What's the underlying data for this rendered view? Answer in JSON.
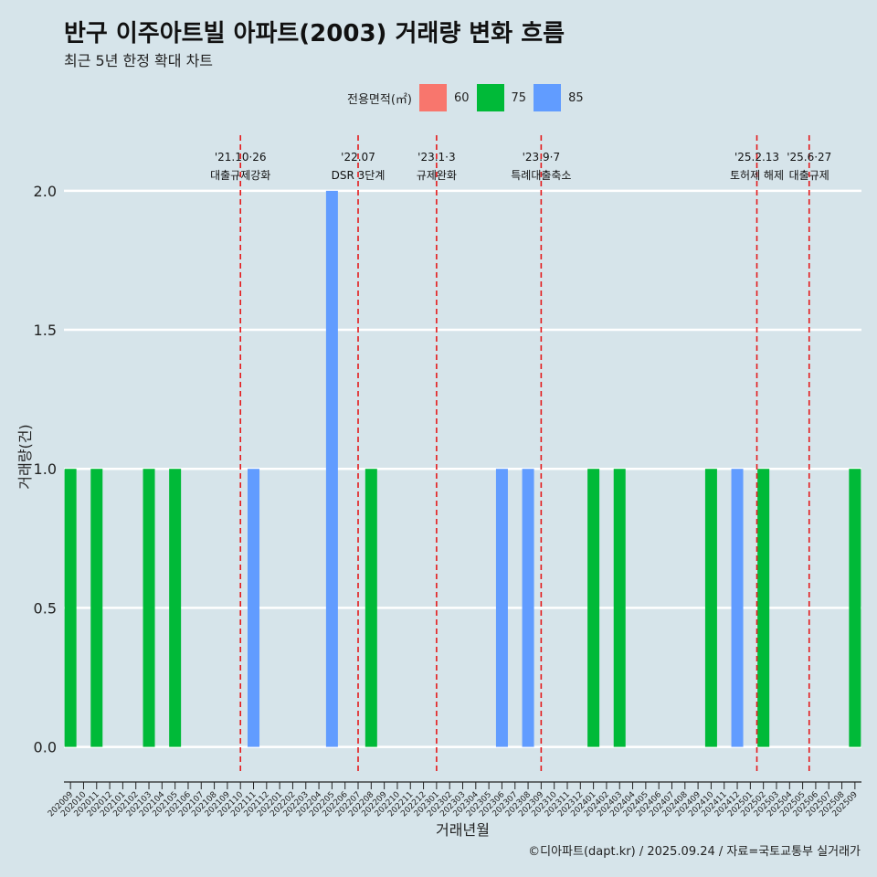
{
  "chart_data": {
    "type": "bar",
    "title": "반구 이주아트빌 아파트(2003) 거래량 변화 흐름",
    "subtitle": "최근 5년 한정 확대 차트",
    "xlabel": "거래년월",
    "ylabel": "거래량(건)",
    "ylim": [
      -0.1,
      2.2
    ],
    "yticks": [
      "0.0",
      "0.5",
      "1.0",
      "1.5",
      "2.0"
    ],
    "ytick_values": [
      0,
      0.5,
      1.0,
      1.5,
      2.0
    ],
    "grid": "horizontal",
    "legend_position": "top",
    "legend_title": "전용면적(㎡)",
    "legend": [
      {
        "name": "60",
        "color": "#f8766d"
      },
      {
        "name": "75",
        "color": "#00ba38"
      },
      {
        "name": "85",
        "color": "#619cff"
      }
    ],
    "categories": [
      "202009",
      "202010",
      "202011",
      "202012",
      "202101",
      "202102",
      "202103",
      "202104",
      "202105",
      "202106",
      "202107",
      "202108",
      "202109",
      "202110",
      "202111",
      "202112",
      "202201",
      "202202",
      "202203",
      "202204",
      "202205",
      "202206",
      "202207",
      "202208",
      "202209",
      "202210",
      "202211",
      "202212",
      "202301",
      "202302",
      "202303",
      "202304",
      "202305",
      "202306",
      "202307",
      "202308",
      "202309",
      "202310",
      "202311",
      "202312",
      "202401",
      "202402",
      "202403",
      "202404",
      "202405",
      "202406",
      "202407",
      "202408",
      "202409",
      "202410",
      "202411",
      "202412",
      "202501",
      "202502",
      "202503",
      "202504",
      "202505",
      "202506",
      "202507",
      "202508",
      "202509"
    ],
    "bars": [
      {
        "month": "202009",
        "area": "75",
        "value": 1
      },
      {
        "month": "202011",
        "area": "75",
        "value": 1
      },
      {
        "month": "202103",
        "area": "75",
        "value": 1
      },
      {
        "month": "202105",
        "area": "75",
        "value": 1
      },
      {
        "month": "202111",
        "area": "85",
        "value": 1
      },
      {
        "month": "202205",
        "area": "85",
        "value": 2
      },
      {
        "month": "202208",
        "area": "75",
        "value": 1
      },
      {
        "month": "202306",
        "area": "85",
        "value": 1
      },
      {
        "month": "202308",
        "area": "85",
        "value": 1
      },
      {
        "month": "202401",
        "area": "75",
        "value": 1
      },
      {
        "month": "202403",
        "area": "75",
        "value": 1
      },
      {
        "month": "202410",
        "area": "75",
        "value": 1
      },
      {
        "month": "202412",
        "area": "85",
        "value": 1
      },
      {
        "month": "202502",
        "area": "75",
        "value": 1
      },
      {
        "month": "202509",
        "area": "75",
        "value": 1
      }
    ],
    "annotations": [
      {
        "position": 13.5,
        "date": "'21.10·26",
        "text": "대출규제강화"
      },
      {
        "position": 22.5,
        "date": "'22.07",
        "text": "DSR 3단계"
      },
      {
        "position": 28.5,
        "date": "'23.1·3",
        "text": "규제완화"
      },
      {
        "position": 36.5,
        "date": "'23.9·7",
        "text": "특례대출축소"
      },
      {
        "position": 53.0,
        "date": "'25.2.13",
        "text": "토허제 해제"
      },
      {
        "position": 57.0,
        "date": "'25.6·27",
        "text": "대출규제"
      }
    ],
    "annotation_color": "#e41a1c"
  },
  "caption": "©디아파트(dapt.kr) / 2025.09.24 / 자료=국토교통부 실거래가"
}
